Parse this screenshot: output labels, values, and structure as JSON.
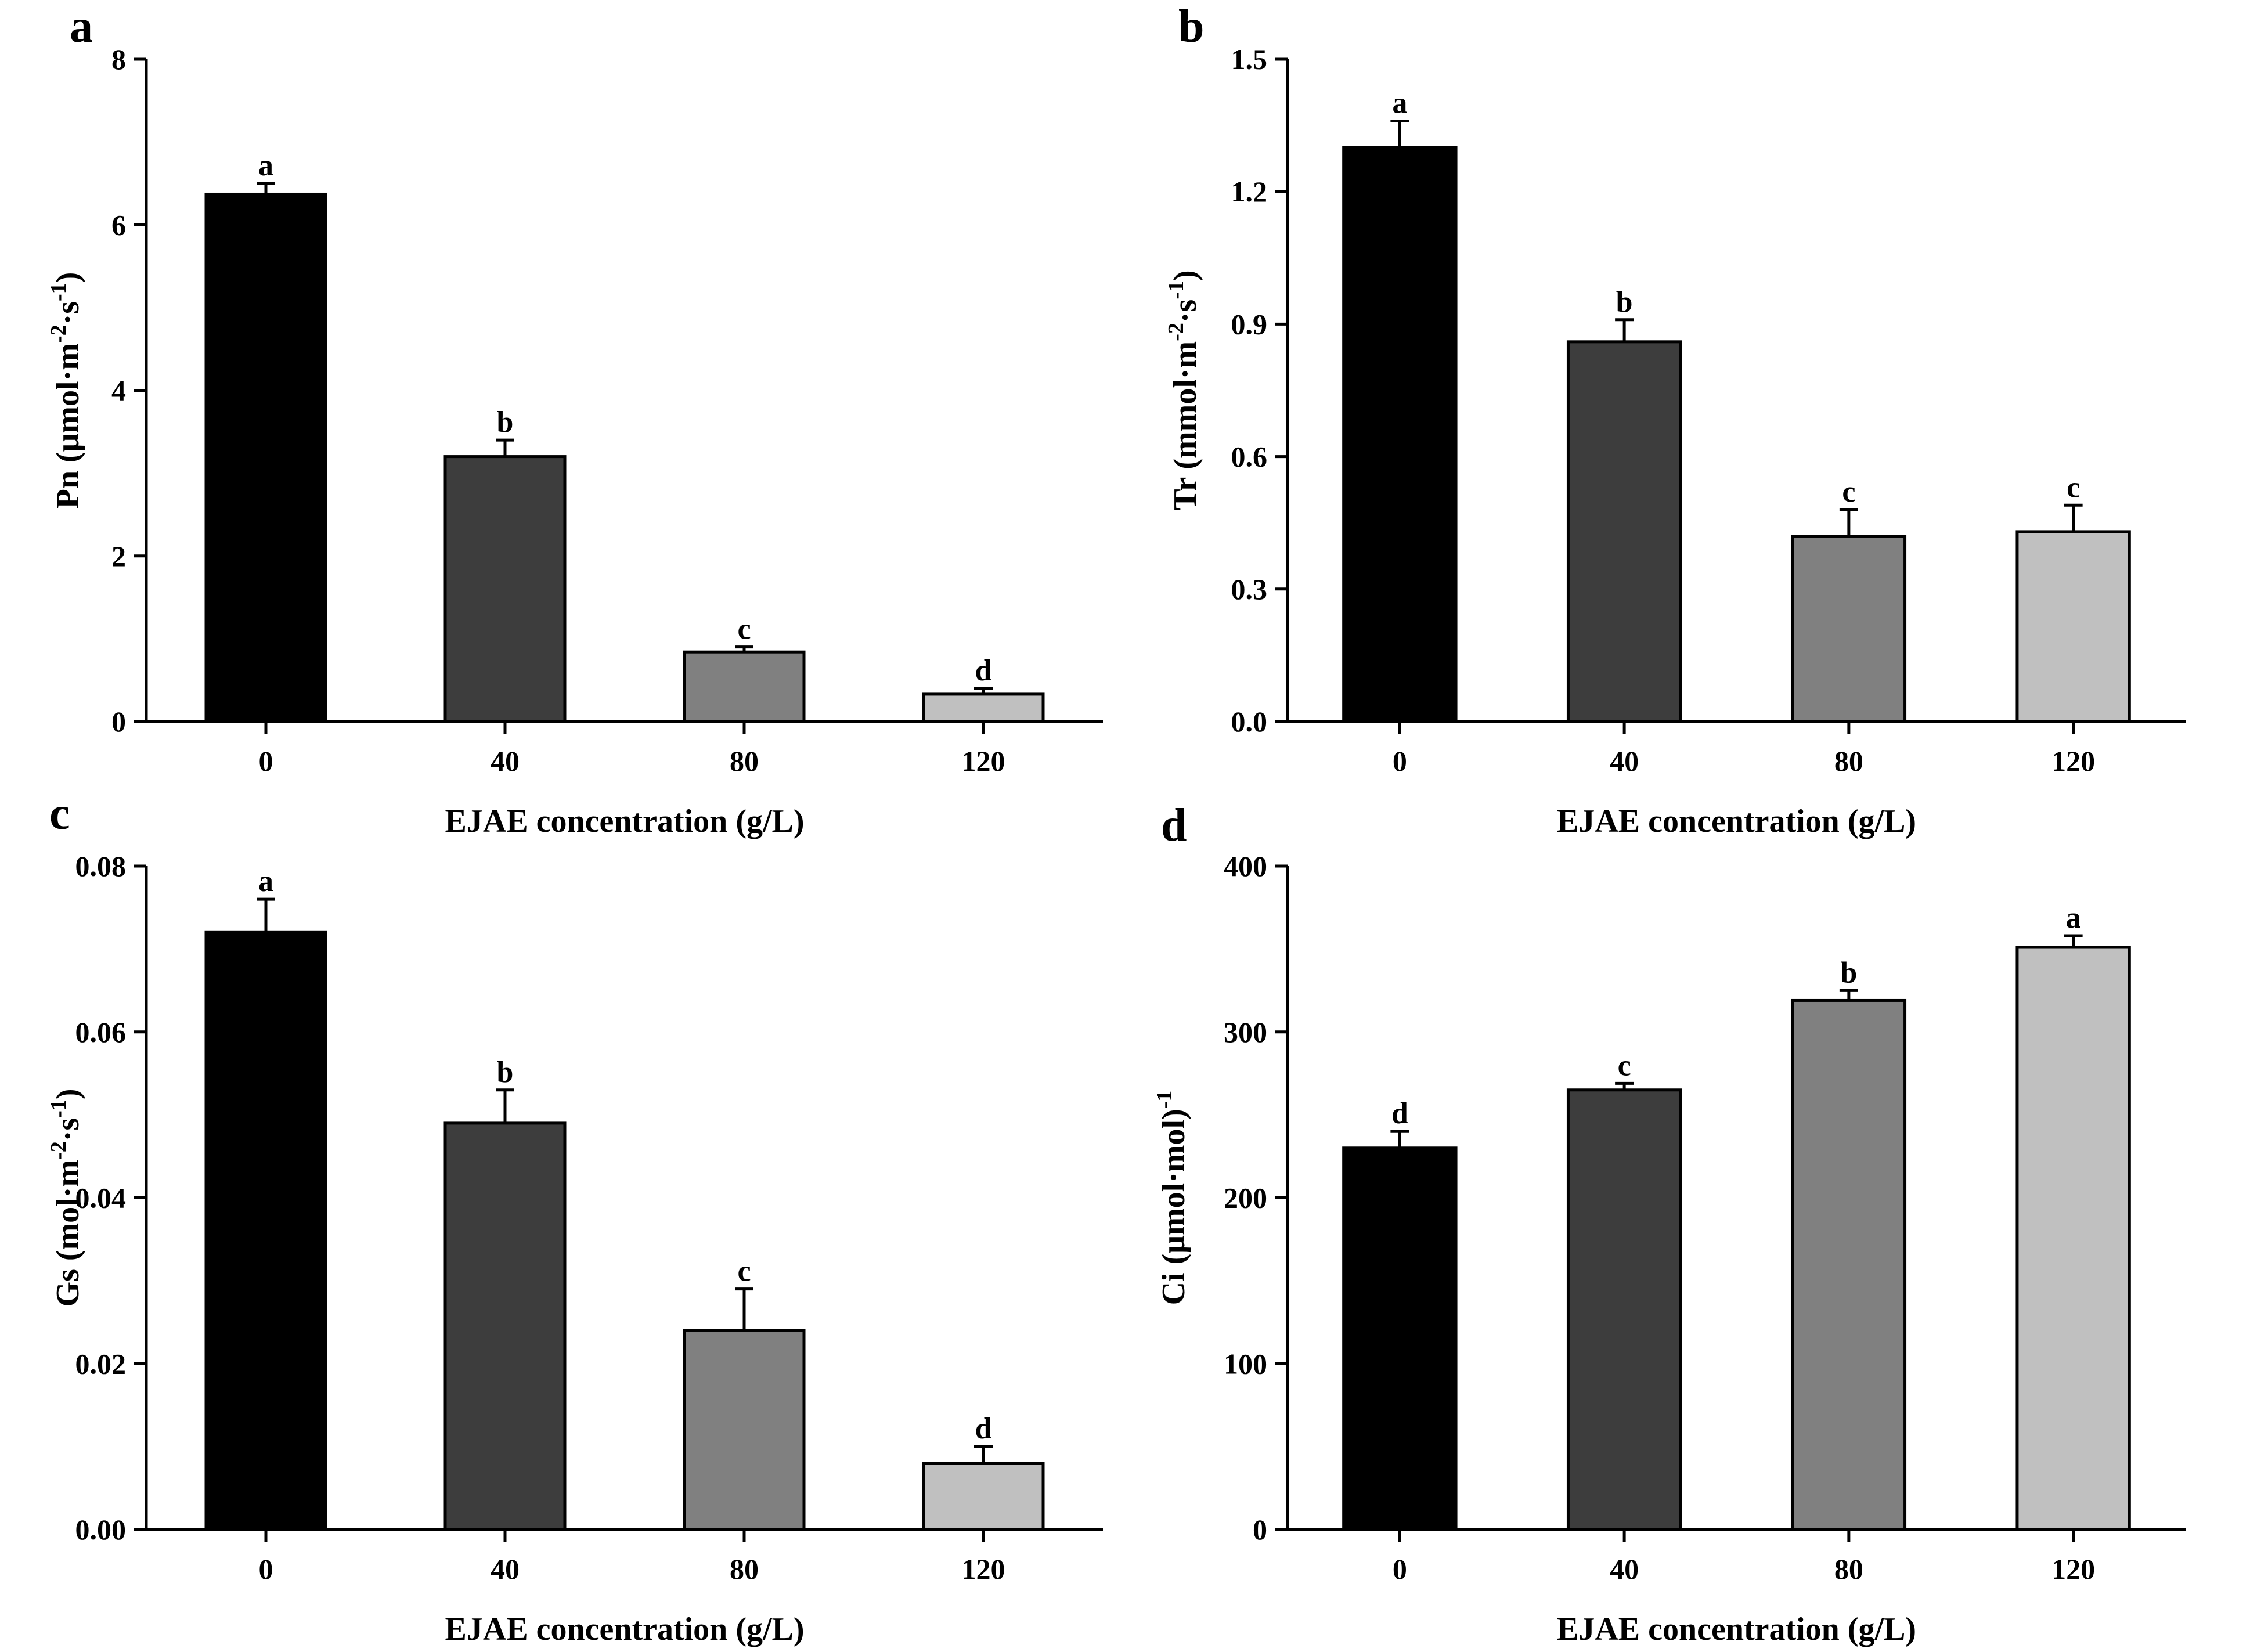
{
  "figure": {
    "xlabel": "EJAE concentration (g/L)",
    "bar_colors": [
      "#000000",
      "#3d3d3d",
      "#808080",
      "#c0c0c0"
    ]
  },
  "chart_data": [
    {
      "panel": "a",
      "type": "bar",
      "categories": [
        "0",
        "40",
        "80",
        "120"
      ],
      "values": [
        6.37,
        3.2,
        0.84,
        0.33
      ],
      "errors": [
        0.13,
        0.2,
        0.06,
        0.07
      ],
      "significance": [
        "a",
        "b",
        "c",
        "d"
      ],
      "ylabel": {
        "base": "Pn (μmol·m",
        "exp1": "-2",
        "mid": "·s",
        "exp2": "-1",
        "end": ")"
      },
      "xlabel": "EJAE concentration (g/L)",
      "ylim": [
        0,
        8
      ],
      "yticks": [
        0,
        2,
        4,
        6,
        8
      ],
      "ytick_labels": [
        "0",
        "2",
        "4",
        "6",
        "8"
      ]
    },
    {
      "panel": "b",
      "type": "bar",
      "categories": [
        "0",
        "40",
        "80",
        "120"
      ],
      "values": [
        1.3,
        0.86,
        0.42,
        0.43
      ],
      "errors": [
        0.06,
        0.05,
        0.06,
        0.06
      ],
      "significance": [
        "a",
        "b",
        "c",
        "c"
      ],
      "ylabel": {
        "base": "Tr (mmol·m",
        "exp1": "-2",
        "mid": "·s",
        "exp2": "-1",
        "end": ")"
      },
      "xlabel": "EJAE concentration (g/L)",
      "ylim": [
        0,
        1.5
      ],
      "yticks": [
        0,
        0.3,
        0.6,
        0.9,
        1.2,
        1.5
      ],
      "ytick_labels": [
        "0.0",
        "0.3",
        "0.6",
        "0.9",
        "1.2",
        "1.5"
      ]
    },
    {
      "panel": "c",
      "type": "bar",
      "categories": [
        "0",
        "40",
        "80",
        "120"
      ],
      "values": [
        0.072,
        0.049,
        0.024,
        0.008
      ],
      "errors": [
        0.004,
        0.004,
        0.005,
        0.002
      ],
      "significance": [
        "a",
        "b",
        "c",
        "d"
      ],
      "ylabel": {
        "base": "Gs (mol·m",
        "exp1": "-2",
        "mid": "·s",
        "exp2": "-1",
        "end": ")"
      },
      "xlabel": "EJAE concentration (g/L)",
      "ylim": [
        0,
        0.08
      ],
      "yticks": [
        0,
        0.02,
        0.04,
        0.06,
        0.08
      ],
      "ytick_labels": [
        "0.00",
        "0.02",
        "0.04",
        "0.06",
        "0.08"
      ]
    },
    {
      "panel": "d",
      "type": "bar",
      "categories": [
        "0",
        "40",
        "80",
        "120"
      ],
      "values": [
        230,
        265,
        319,
        351
      ],
      "errors": [
        10,
        4,
        6,
        7
      ],
      "significance": [
        "d",
        "c",
        "b",
        "a"
      ],
      "ylabel": {
        "base": "Ci (μmol·mol)",
        "exp1": "-1",
        "mid": "",
        "exp2": "",
        "end": ""
      },
      "xlabel": "EJAE concentration (g/L)",
      "ylim": [
        0,
        400
      ],
      "yticks": [
        0,
        100,
        200,
        300,
        400
      ],
      "ytick_labels": [
        "0",
        "100",
        "200",
        "300",
        "400"
      ]
    }
  ]
}
